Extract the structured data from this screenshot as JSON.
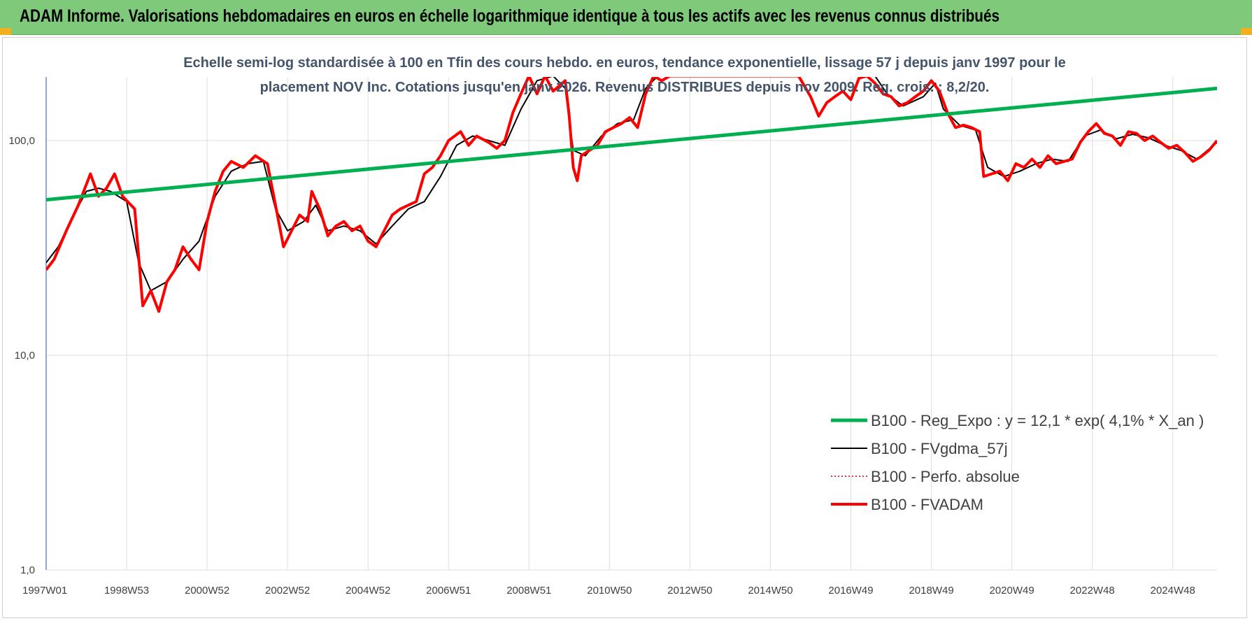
{
  "banner": {
    "title": "ADAM Informe. Valorisations hebdomadaires en euros en échelle logarithmique identique à tous les actifs avec les revenus connus distribués"
  },
  "colors": {
    "banner": "#7ec97a",
    "trend": "#00b050",
    "smooth": "#000000",
    "absolute": "#c00000",
    "fvadam": "#ff0000",
    "corner": "#f2b01e"
  },
  "chart_data": {
    "type": "line",
    "title": "Echelle semi-log standardisée à 100 en Tfin des cours hebdo. en euros, tendance exponentielle, lissage 57 j depuis janv 1997 pour le placement NOV Inc. Cotations jusqu'en janv 2026. Revenus DISTRIBUES depuis nov 2009. Reg. crois. : 8,2/20.",
    "title_lines": [
      "Echelle semi-log standardisée à 100 en Tfin des cours hebdo. en euros, tendance exponentielle, lissage 57 j depuis janv 1997 pour le",
      "placement NOV Inc. Cotations jusqu'en janv 2026. Revenus DISTRIBUES depuis nov 2009. Reg. crois. : 8,2/20."
    ],
    "y_scale": "log",
    "ylim": [
      1,
      200
    ],
    "y_ticks": [
      "1,0",
      "10,0",
      "100,0"
    ],
    "y_tick_values": [
      1,
      10,
      100
    ],
    "xlim": [
      1997.0,
      2026.1
    ],
    "x_ticks": [
      {
        "label": "1997W01",
        "value": 1997.0
      },
      {
        "label": "1998W53",
        "value": 1999.0
      },
      {
        "label": "2000W52",
        "value": 2001.0
      },
      {
        "label": "2002W52",
        "value": 2003.0
      },
      {
        "label": "2004W52",
        "value": 2005.0
      },
      {
        "label": "2006W51",
        "value": 2007.0
      },
      {
        "label": "2008W51",
        "value": 2009.0
      },
      {
        "label": "2010W50",
        "value": 2011.0
      },
      {
        "label": "2012W50",
        "value": 2013.0
      },
      {
        "label": "2014W50",
        "value": 2015.0
      },
      {
        "label": "2016W49",
        "value": 2017.0
      },
      {
        "label": "2018W49",
        "value": 2019.0
      },
      {
        "label": "2020W49",
        "value": 2021.0
      },
      {
        "label": "2022W48",
        "value": 2023.0
      },
      {
        "label": "2024W48",
        "value": 2025.0
      }
    ],
    "legend_position": "bottom-right",
    "grid": true,
    "series": [
      {
        "name": "B100 - Reg_Expo : y = 12,1 * exp( 4,1% *  X_an )",
        "style": "thick",
        "points": [
          [
            1997.0,
            53
          ],
          [
            2026.1,
            175
          ]
        ]
      },
      {
        "name": "B100 - FVgdma_57j",
        "style": "thin",
        "points": [
          [
            1997.0,
            27
          ],
          [
            1997.3,
            32
          ],
          [
            1997.6,
            42
          ],
          [
            1998.0,
            58
          ],
          [
            1998.3,
            60
          ],
          [
            1998.6,
            58
          ],
          [
            1999.0,
            52
          ],
          [
            1999.3,
            27
          ],
          [
            1999.6,
            20
          ],
          [
            2000.0,
            22
          ],
          [
            2000.4,
            28
          ],
          [
            2000.8,
            34
          ],
          [
            2001.2,
            55
          ],
          [
            2001.6,
            72
          ],
          [
            2002.0,
            78
          ],
          [
            2002.4,
            80
          ],
          [
            2002.7,
            48
          ],
          [
            2003.0,
            38
          ],
          [
            2003.4,
            42
          ],
          [
            2003.7,
            50
          ],
          [
            2004.0,
            38
          ],
          [
            2004.4,
            40
          ],
          [
            2004.8,
            38
          ],
          [
            2005.2,
            33
          ],
          [
            2005.6,
            40
          ],
          [
            2006.0,
            48
          ],
          [
            2006.4,
            52
          ],
          [
            2006.8,
            68
          ],
          [
            2007.2,
            95
          ],
          [
            2007.6,
            105
          ],
          [
            2008.0,
            100
          ],
          [
            2008.4,
            95
          ],
          [
            2008.8,
            140
          ],
          [
            2009.2,
            190
          ],
          [
            2009.6,
            200
          ],
          [
            2009.9,
            175
          ],
          [
            2010.1,
            90
          ],
          [
            2010.4,
            85
          ],
          [
            2010.8,
            105
          ],
          [
            2011.2,
            120
          ],
          [
            2011.6,
            125
          ],
          [
            2011.9,
            175
          ],
          [
            2012.2,
            200
          ],
          [
            2017.6,
            200
          ],
          [
            2017.9,
            165
          ],
          [
            2018.3,
            145
          ],
          [
            2018.8,
            160
          ],
          [
            2019.1,
            185
          ],
          [
            2019.3,
            140
          ],
          [
            2019.7,
            118
          ],
          [
            2020.1,
            112
          ],
          [
            2020.4,
            75
          ],
          [
            2020.8,
            68
          ],
          [
            2021.2,
            72
          ],
          [
            2021.6,
            78
          ],
          [
            2022.0,
            82
          ],
          [
            2022.4,
            80
          ],
          [
            2022.8,
            105
          ],
          [
            2023.2,
            112
          ],
          [
            2023.6,
            102
          ],
          [
            2024.0,
            107
          ],
          [
            2024.4,
            103
          ],
          [
            2024.8,
            95
          ],
          [
            2025.2,
            90
          ],
          [
            2025.6,
            82
          ],
          [
            2026.1,
            98
          ]
        ]
      },
      {
        "name": "B100 - Perfo. absolue",
        "style": "dotted",
        "points": []
      },
      {
        "name": "B100 - FVADAM",
        "style": "thick",
        "points": [
          [
            1997.0,
            25
          ],
          [
            1997.2,
            28
          ],
          [
            1997.5,
            38
          ],
          [
            1997.8,
            50
          ],
          [
            1998.1,
            70
          ],
          [
            1998.3,
            55
          ],
          [
            1998.5,
            60
          ],
          [
            1998.7,
            70
          ],
          [
            1998.9,
            55
          ],
          [
            1999.2,
            48
          ],
          [
            1999.4,
            17
          ],
          [
            1999.6,
            20
          ],
          [
            1999.8,
            16
          ],
          [
            2000.0,
            22
          ],
          [
            2000.2,
            25
          ],
          [
            2000.4,
            32
          ],
          [
            2000.6,
            28
          ],
          [
            2000.8,
            25
          ],
          [
            2001.0,
            42
          ],
          [
            2001.2,
            58
          ],
          [
            2001.4,
            72
          ],
          [
            2001.6,
            80
          ],
          [
            2001.9,
            75
          ],
          [
            2002.2,
            85
          ],
          [
            2002.5,
            78
          ],
          [
            2002.7,
            50
          ],
          [
            2002.9,
            32
          ],
          [
            2003.1,
            38
          ],
          [
            2003.3,
            45
          ],
          [
            2003.5,
            42
          ],
          [
            2003.6,
            58
          ],
          [
            2003.8,
            48
          ],
          [
            2004.0,
            36
          ],
          [
            2004.2,
            40
          ],
          [
            2004.4,
            42
          ],
          [
            2004.6,
            38
          ],
          [
            2004.8,
            40
          ],
          [
            2005.0,
            34
          ],
          [
            2005.2,
            32
          ],
          [
            2005.4,
            38
          ],
          [
            2005.6,
            45
          ],
          [
            2005.8,
            48
          ],
          [
            2006.0,
            50
          ],
          [
            2006.2,
            52
          ],
          [
            2006.4,
            70
          ],
          [
            2006.6,
            75
          ],
          [
            2006.8,
            85
          ],
          [
            2007.0,
            100
          ],
          [
            2007.3,
            110
          ],
          [
            2007.5,
            95
          ],
          [
            2007.7,
            105
          ],
          [
            2008.0,
            98
          ],
          [
            2008.2,
            92
          ],
          [
            2008.4,
            100
          ],
          [
            2008.6,
            135
          ],
          [
            2008.8,
            165
          ],
          [
            2009.0,
            200
          ],
          [
            2009.2,
            165
          ],
          [
            2009.4,
            200
          ],
          [
            2009.6,
            170
          ],
          [
            2009.9,
            190
          ],
          [
            2010.0,
            130
          ],
          [
            2010.1,
            75
          ],
          [
            2010.2,
            65
          ],
          [
            2010.3,
            85
          ],
          [
            2010.5,
            90
          ],
          [
            2010.7,
            95
          ],
          [
            2010.9,
            110
          ],
          [
            2011.1,
            115
          ],
          [
            2011.3,
            120
          ],
          [
            2011.5,
            128
          ],
          [
            2011.7,
            115
          ],
          [
            2011.9,
            165
          ],
          [
            2012.1,
            200
          ],
          [
            2012.3,
            190
          ],
          [
            2012.5,
            200
          ],
          [
            2015.7,
            200
          ],
          [
            2016.0,
            160
          ],
          [
            2016.2,
            130
          ],
          [
            2016.4,
            150
          ],
          [
            2016.6,
            160
          ],
          [
            2016.8,
            170
          ],
          [
            2017.0,
            155
          ],
          [
            2017.2,
            195
          ],
          [
            2017.4,
            200
          ],
          [
            2017.6,
            185
          ],
          [
            2017.8,
            165
          ],
          [
            2018.0,
            160
          ],
          [
            2018.2,
            145
          ],
          [
            2018.4,
            150
          ],
          [
            2018.6,
            160
          ],
          [
            2018.8,
            170
          ],
          [
            2019.0,
            190
          ],
          [
            2019.2,
            170
          ],
          [
            2019.4,
            135
          ],
          [
            2019.6,
            115
          ],
          [
            2019.8,
            118
          ],
          [
            2020.0,
            115
          ],
          [
            2020.2,
            110
          ],
          [
            2020.3,
            68
          ],
          [
            2020.5,
            70
          ],
          [
            2020.7,
            72
          ],
          [
            2020.9,
            65
          ],
          [
            2021.1,
            78
          ],
          [
            2021.3,
            75
          ],
          [
            2021.5,
            82
          ],
          [
            2021.7,
            75
          ],
          [
            2021.9,
            85
          ],
          [
            2022.1,
            78
          ],
          [
            2022.3,
            80
          ],
          [
            2022.5,
            82
          ],
          [
            2022.7,
            98
          ],
          [
            2022.9,
            110
          ],
          [
            2023.1,
            120
          ],
          [
            2023.3,
            108
          ],
          [
            2023.5,
            105
          ],
          [
            2023.7,
            95
          ],
          [
            2023.9,
            110
          ],
          [
            2024.1,
            108
          ],
          [
            2024.3,
            100
          ],
          [
            2024.5,
            105
          ],
          [
            2024.7,
            98
          ],
          [
            2024.9,
            92
          ],
          [
            2025.1,
            95
          ],
          [
            2025.3,
            88
          ],
          [
            2025.5,
            80
          ],
          [
            2025.7,
            84
          ],
          [
            2025.9,
            90
          ],
          [
            2026.1,
            100
          ]
        ]
      }
    ]
  }
}
